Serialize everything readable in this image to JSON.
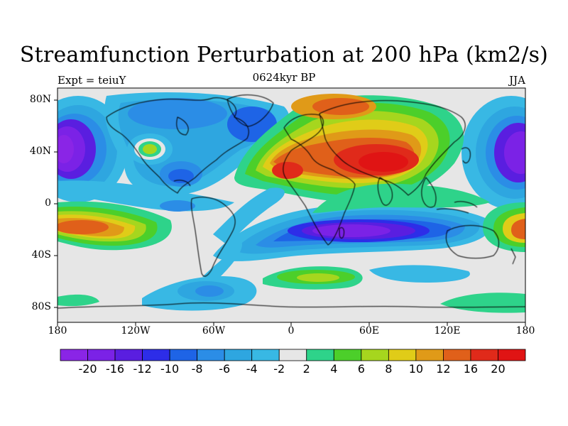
{
  "header": {
    "title": "Streamfunction Perturbation at 200 hPa (km2/s)",
    "left": "Expt = teiuY",
    "center": "0624kyr BP",
    "right": "JJA"
  },
  "axes": {
    "lat_labels": [
      "80N",
      "40N",
      "0",
      "40S",
      "80S"
    ],
    "lon_labels": [
      "180",
      "120W",
      "60W",
      "0",
      "60E",
      "120E",
      "180"
    ]
  },
  "legend": {
    "labels": [
      "-20",
      "-16",
      "-12",
      "-10",
      "-8",
      "-6",
      "-4",
      "-2",
      "2",
      "4",
      "6",
      "8",
      "10",
      "12",
      "16",
      "20"
    ],
    "colors": [
      "#8a25e6",
      "#7b22e6",
      "#5a1ee0",
      "#2d2de8",
      "#1e64e6",
      "#2b8de6",
      "#2ea6e0",
      "#38b8e4",
      "#e6e6e6",
      "#2ed38a",
      "#4ccf2a",
      "#a6d61e",
      "#e0cc18",
      "#e09a18",
      "#e0601a",
      "#e02a1a",
      "#e01414"
    ]
  },
  "map": {
    "background": "#e6e6e6",
    "coastline_color": "#000000",
    "lon_range": [
      -180,
      180
    ],
    "lat_range": [
      -90,
      90
    ]
  }
}
